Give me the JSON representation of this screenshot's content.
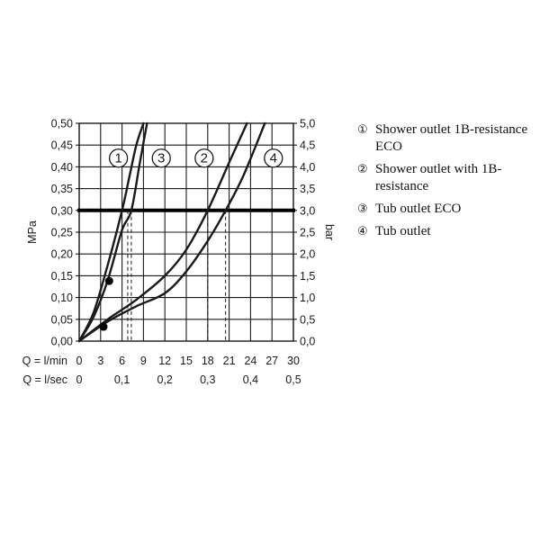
{
  "chart_data": {
    "type": "line",
    "y_left": {
      "label": "MPa",
      "ticks": [
        "0,00",
        "0,05",
        "0,10",
        "0,15",
        "0,20",
        "0,25",
        "0,30",
        "0,35",
        "0,40",
        "0,45",
        "0,50"
      ],
      "range": [
        0,
        0.5
      ]
    },
    "y_right": {
      "label": "bar",
      "ticks": [
        "0,0",
        "0,5",
        "1,0",
        "1,5",
        "2,0",
        "2,5",
        "3,0",
        "3,5",
        "4,0",
        "4,5",
        "5,0"
      ]
    },
    "x_primary": {
      "label": "Q = l/min",
      "ticks": [
        "0",
        "3",
        "6",
        "9",
        "12",
        "15",
        "18",
        "21",
        "24",
        "27",
        "30"
      ],
      "range": [
        0,
        30
      ]
    },
    "x_secondary": {
      "label": "Q = l/sec",
      "ticks": [
        "0",
        "0,1",
        "0,2",
        "0,3",
        "0,4",
        "0,5"
      ]
    },
    "grid": true,
    "reference_line": {
      "y": 0.3
    },
    "series": [
      {
        "id": "1",
        "marker": "1",
        "name": "Shower outlet 1B-resistance ECO",
        "x": [
          0,
          2,
          4,
          6,
          7,
          8,
          9
        ],
        "y": [
          0,
          0.065,
          0.175,
          0.3,
          0.375,
          0.45,
          0.5
        ]
      },
      {
        "id": "2",
        "marker": "2",
        "name": "Shower outlet with 1B-resistance",
        "x": [
          0,
          4,
          8,
          12,
          15,
          18,
          21,
          23.5
        ],
        "y": [
          0,
          0.05,
          0.095,
          0.15,
          0.21,
          0.3,
          0.41,
          0.5
        ]
      },
      {
        "id": "3",
        "marker": "3",
        "name": "Tub outlet ECO",
        "x": [
          0,
          2,
          4,
          6,
          7.3,
          8.5,
          9.5
        ],
        "y": [
          0,
          0.055,
          0.14,
          0.255,
          0.3,
          0.41,
          0.5
        ]
      },
      {
        "id": "4",
        "marker": "4",
        "name": "Tub outlet",
        "x": [
          0,
          4,
          8,
          12,
          15,
          18,
          20.5,
          23,
          26
        ],
        "y": [
          0,
          0.045,
          0.08,
          0.11,
          0.16,
          0.23,
          0.3,
          0.38,
          0.5
        ]
      }
    ],
    "dots": [
      {
        "x": 4.2,
        "y": 0.138
      },
      {
        "x": 3.4,
        "y": 0.033
      }
    ],
    "marker_labels": [
      {
        "text": "1",
        "x": 5.5,
        "y": 0.42
      },
      {
        "text": "3",
        "x": 11.5,
        "y": 0.42
      },
      {
        "text": "2",
        "x": 17.5,
        "y": 0.42
      },
      {
        "text": "4",
        "x": 27.2,
        "y": 0.42
      }
    ],
    "drop_lines": [
      {
        "x": 6.8
      },
      {
        "x": 7.3
      },
      {
        "x": 18
      },
      {
        "x": 20.5
      }
    ]
  },
  "legend": [
    {
      "num": "①",
      "text": "Shower outlet 1B-resistance ECO"
    },
    {
      "num": "②",
      "text": "Shower outlet with 1B-resistance"
    },
    {
      "num": "③",
      "text": "Tub outlet ECO"
    },
    {
      "num": "④",
      "text": "Tub outlet"
    }
  ]
}
